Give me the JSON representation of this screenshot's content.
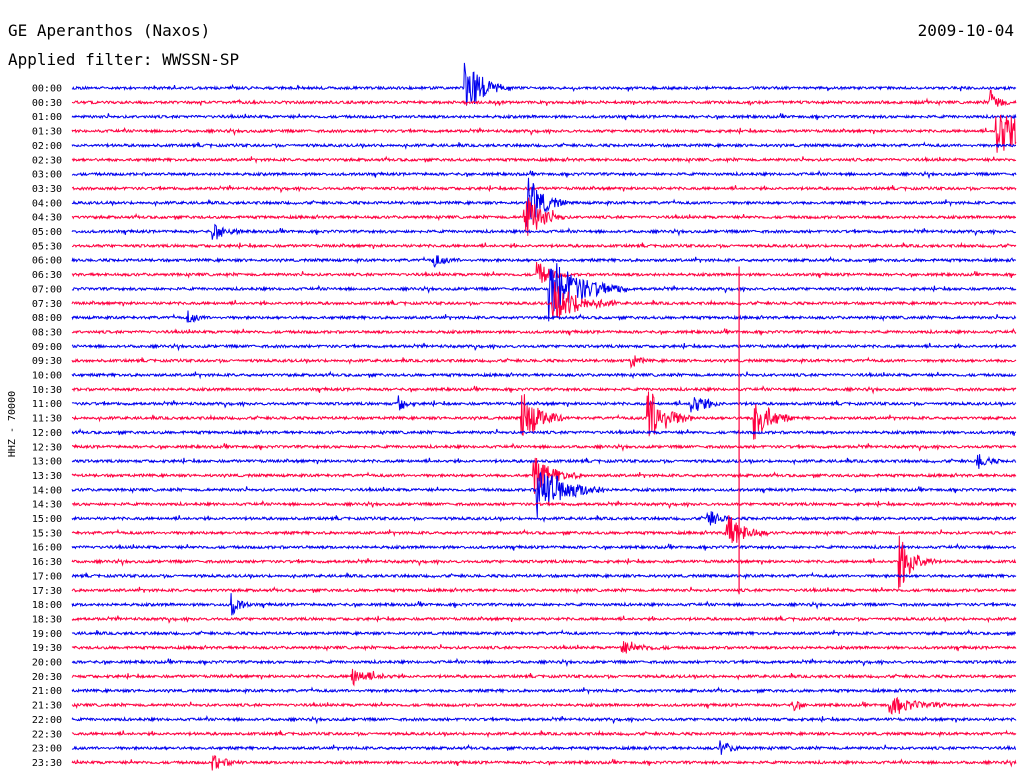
{
  "header": {
    "station": "GE Aperanthos (Naxos)",
    "date": "2009-10-04",
    "filter": "Applied filter: WWSSN-SP"
  },
  "chart_data": {
    "type": "line",
    "subtype": "helicorder",
    "ylabel": "HHZ - 70000",
    "colors": {
      "even": "#0000ee",
      "odd": "#ff0040",
      "background": "#ffffff"
    },
    "row_labels": [
      "00:00",
      "00:30",
      "01:00",
      "01:30",
      "02:00",
      "02:30",
      "03:00",
      "03:30",
      "04:00",
      "04:30",
      "05:00",
      "05:30",
      "06:00",
      "06:30",
      "07:00",
      "07:30",
      "08:00",
      "08:30",
      "09:00",
      "09:30",
      "10:00",
      "10:30",
      "11:00",
      "11:30",
      "12:00",
      "12:30",
      "13:00",
      "13:30",
      "14:00",
      "14:30",
      "15:00",
      "15:30",
      "16:00",
      "16:30",
      "17:00",
      "17:30",
      "18:00",
      "18:30",
      "19:00",
      "19:30",
      "20:00",
      "20:30",
      "21:00",
      "21:30",
      "22:00",
      "22:30",
      "23:00",
      "23:30"
    ],
    "trace_minutes": 30,
    "events": [
      {
        "row": 0,
        "minute": 12.5,
        "amp": 1.8,
        "dur": 1.5
      },
      {
        "row": 1,
        "minute": 29.2,
        "amp": 1.0,
        "dur": 0.6
      },
      {
        "row": 3,
        "minute": 29.4,
        "amp": 2.4,
        "dur": 1.5
      },
      {
        "row": 8,
        "minute": 14.5,
        "amp": 2.0,
        "dur": 1.2
      },
      {
        "row": 9,
        "minute": 14.4,
        "amp": 1.8,
        "dur": 1.3
      },
      {
        "row": 10,
        "minute": 4.5,
        "amp": 0.6,
        "dur": 1.0
      },
      {
        "row": 12,
        "minute": 11.5,
        "amp": 0.5,
        "dur": 0.8
      },
      {
        "row": 13,
        "minute": 14.8,
        "amp": 0.9,
        "dur": 1.0
      },
      {
        "row": 14,
        "minute": 15.2,
        "amp": 2.2,
        "dur": 2.5
      },
      {
        "row": 15,
        "minute": 15.3,
        "amp": 1.5,
        "dur": 2.0
      },
      {
        "row": 16,
        "minute": 3.7,
        "amp": 0.5,
        "dur": 0.6
      },
      {
        "row": 19,
        "minute": 17.8,
        "amp": 0.5,
        "dur": 0.5
      },
      {
        "row": 22,
        "minute": 10.4,
        "amp": 0.6,
        "dur": 0.5
      },
      {
        "row": 22,
        "minute": 19.7,
        "amp": 0.9,
        "dur": 1.0
      },
      {
        "row": 23,
        "minute": 14.3,
        "amp": 2.0,
        "dur": 1.3
      },
      {
        "row": 23,
        "minute": 18.3,
        "amp": 2.3,
        "dur": 1.4
      },
      {
        "row": 23,
        "minute": 21.7,
        "amp": 1.8,
        "dur": 1.2
      },
      {
        "row": 26,
        "minute": 28.8,
        "amp": 0.6,
        "dur": 0.7
      },
      {
        "row": 27,
        "minute": 14.7,
        "amp": 1.3,
        "dur": 1.5
      },
      {
        "row": 28,
        "minute": 14.8,
        "amp": 1.9,
        "dur": 2.2
      },
      {
        "row": 30,
        "minute": 20.2,
        "amp": 0.7,
        "dur": 0.8
      },
      {
        "row": 31,
        "minute": 20.8,
        "amp": 1.5,
        "dur": 1.3
      },
      {
        "row": 33,
        "minute": 26.3,
        "amp": 1.9,
        "dur": 1.2
      },
      {
        "row": 36,
        "minute": 5.1,
        "amp": 0.8,
        "dur": 0.6
      },
      {
        "row": 39,
        "minute": 17.5,
        "amp": 0.4,
        "dur": 1.5
      },
      {
        "row": 41,
        "minute": 8.9,
        "amp": 0.6,
        "dur": 1.4
      },
      {
        "row": 43,
        "minute": 22.9,
        "amp": 0.5,
        "dur": 0.5
      },
      {
        "row": 43,
        "minute": 26.0,
        "amp": 0.6,
        "dur": 2.0
      },
      {
        "row": 46,
        "minute": 20.6,
        "amp": 0.5,
        "dur": 0.8
      },
      {
        "row": 47,
        "minute": 4.5,
        "amp": 0.5,
        "dur": 1.0
      }
    ],
    "spike": {
      "from_row": 13,
      "to_row": 35,
      "minute": 21.2
    }
  }
}
